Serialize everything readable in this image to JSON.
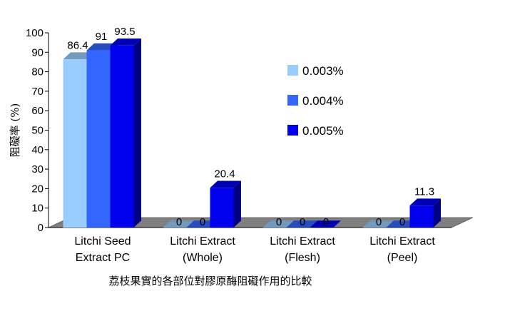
{
  "chart_data": {
    "type": "bar",
    "caption": "荔枝果實的各部位對膠原酶阻礙作用的比較",
    "ylabel": "阻礙率 (%)",
    "ylim": [
      0,
      100
    ],
    "yticks": [
      0,
      10,
      20,
      30,
      40,
      50,
      60,
      70,
      80,
      90,
      100
    ],
    "categories": [
      [
        "Litchi Seed",
        "Extract PC"
      ],
      [
        "Litchi Extract",
        "(Whole)"
      ],
      [
        "Litchi Extract",
        "(Flesh)"
      ],
      [
        "Litchi Extract",
        "(Peel)"
      ]
    ],
    "series": [
      {
        "name": "0.003%",
        "color": "#99ccff",
        "values": [
          86.4,
          0,
          0,
          0
        ]
      },
      {
        "name": "0.004%",
        "color": "#3366ff",
        "values": [
          91,
          0,
          0,
          0
        ]
      },
      {
        "name": "0.005%",
        "color": "#0000ee",
        "values": [
          93.5,
          20.4,
          0,
          11.3
        ]
      }
    ],
    "legend": "inside-right",
    "grid": false,
    "style": "3d"
  }
}
